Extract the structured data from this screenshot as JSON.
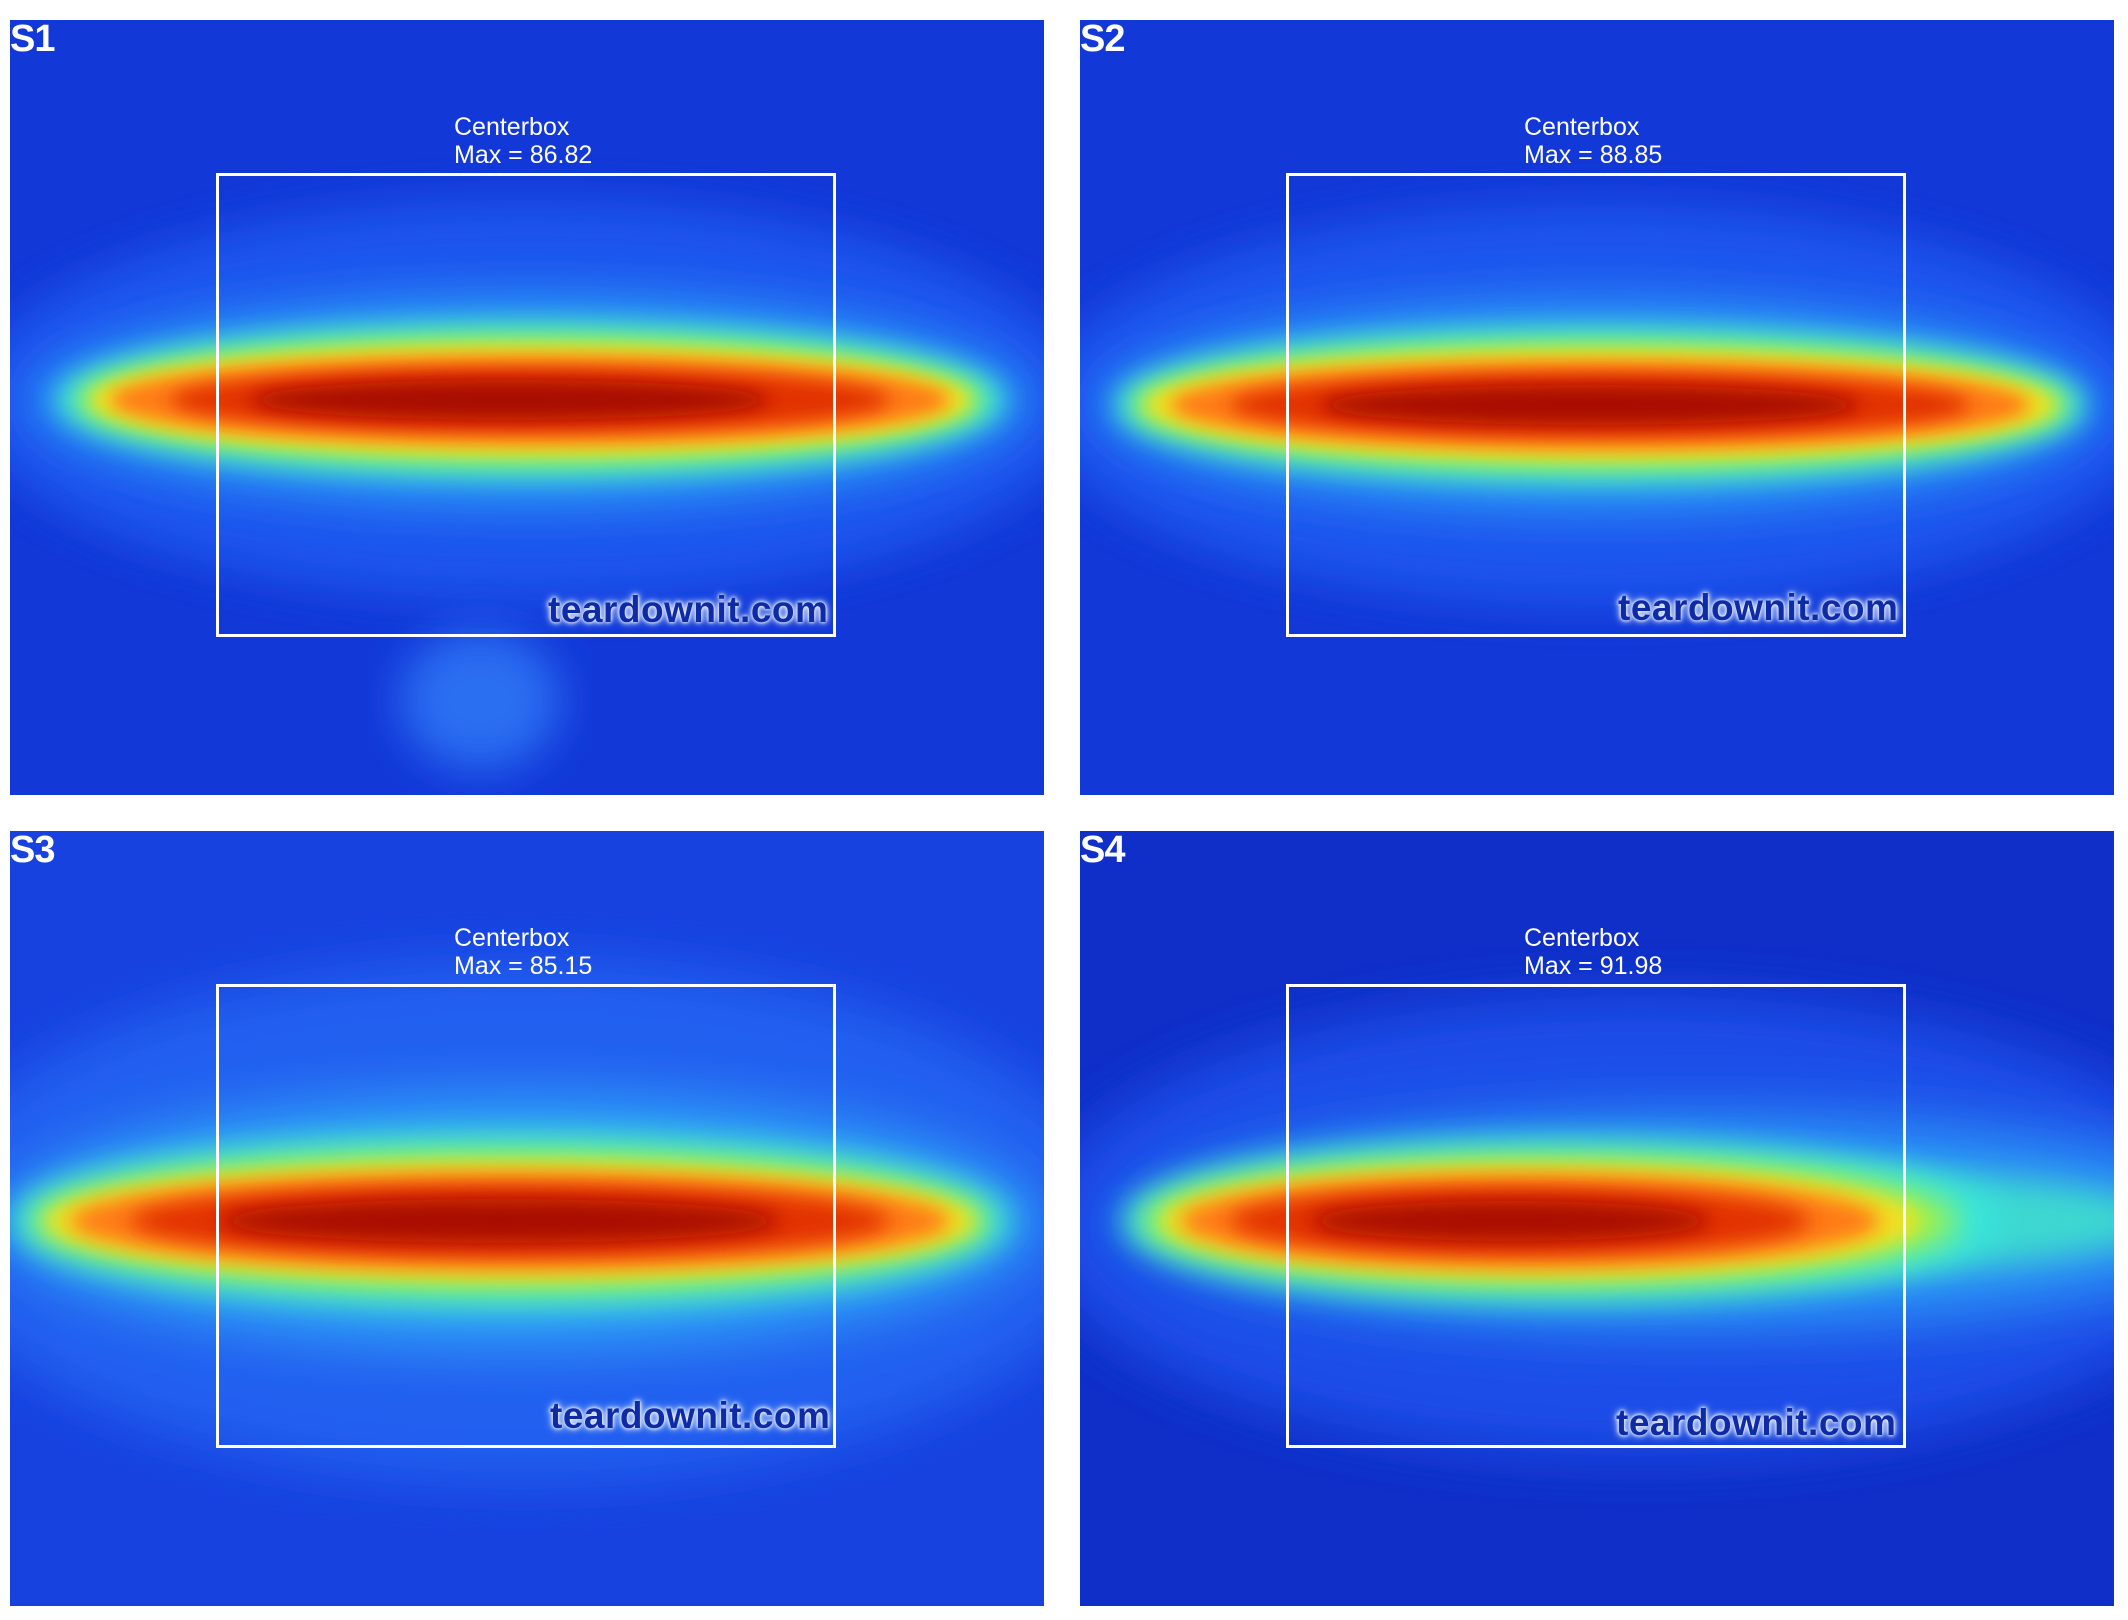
{
  "watermark": "teardownit.com",
  "colors": {
    "background_blue": "#1238d8",
    "hot_core": "#9a0a00",
    "box_outline": "#ffffff"
  },
  "panels": [
    {
      "label": "S1",
      "centerbox_title": "Centerbox",
      "centerbox_max": "Max = 86.82"
    },
    {
      "label": "S2",
      "centerbox_title": "Centerbox",
      "centerbox_max": "Max = 88.85"
    },
    {
      "label": "S3",
      "centerbox_title": "Centerbox",
      "centerbox_max": "Max = 85.15"
    },
    {
      "label": "S4",
      "centerbox_title": "Centerbox",
      "centerbox_max": "Max = 91.98"
    }
  ]
}
